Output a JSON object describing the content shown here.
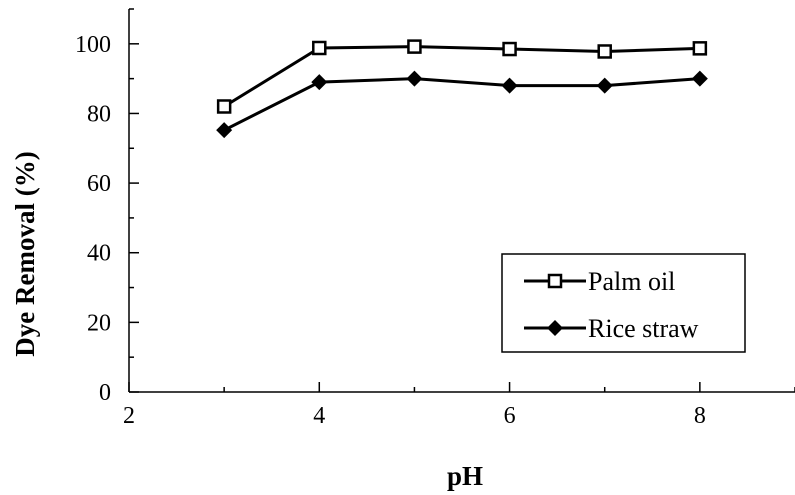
{
  "chart_data": {
    "type": "line",
    "xlabel": "pH",
    "ylabel": "Dye Removal (%)",
    "xlim": [
      2,
      9
    ],
    "ylim": [
      0,
      110
    ],
    "xticks": [
      2,
      4,
      6,
      8
    ],
    "yticks": [
      0,
      20,
      40,
      60,
      80,
      100
    ],
    "x_tick_labels": [
      "2",
      "4",
      "6",
      "8"
    ],
    "y_tick_labels": [
      "0",
      "20",
      "40",
      "60",
      "80",
      "100"
    ],
    "grid": false,
    "legend_position": "lower-right",
    "series": [
      {
        "name": "Palm oil",
        "marker": "open-square",
        "color": "#000000",
        "x": [
          3,
          4,
          5,
          6,
          7,
          8
        ],
        "values": [
          82,
          98.8,
          99.2,
          98.5,
          97.8,
          98.7
        ]
      },
      {
        "name": "Rice straw",
        "marker": "filled-diamond",
        "color": "#000000",
        "x": [
          3,
          4,
          5,
          6,
          7,
          8
        ],
        "values": [
          75.2,
          89,
          90,
          88,
          88,
          90
        ]
      }
    ]
  }
}
